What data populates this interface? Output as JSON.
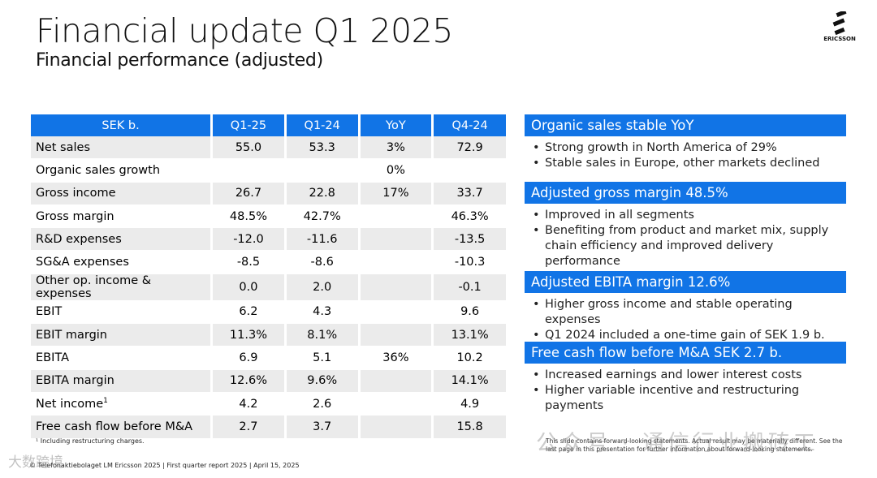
{
  "header": {
    "title": "Financial update Q1 2025",
    "subtitle": "Financial performance (adjusted)",
    "logo_word": "ERICSSON"
  },
  "table": {
    "columns": [
      "SEK b.",
      "Q1-25",
      "Q1-24",
      "YoY",
      "Q4-24"
    ],
    "rows": [
      {
        "label": "Net sales",
        "q125": "55.0",
        "q124": "53.3",
        "yoy": "3%",
        "q424": "72.9"
      },
      {
        "label": "Organic sales growth",
        "q125": "",
        "q124": "",
        "yoy": "0%",
        "q424": ""
      },
      {
        "label": "Gross income",
        "q125": "26.7",
        "q124": "22.8",
        "yoy": "17%",
        "q424": "33.7"
      },
      {
        "label": "Gross margin",
        "q125": "48.5%",
        "q124": "42.7%",
        "yoy": "",
        "q424": "46.3%"
      },
      {
        "label": "R&D expenses",
        "q125": "-12.0",
        "q124": "-11.6",
        "yoy": "",
        "q424": "-13.5"
      },
      {
        "label": "SG&A expenses",
        "q125": "-8.5",
        "q124": "-8.6",
        "yoy": "",
        "q424": "-10.3"
      },
      {
        "label": "Other op. income & expenses",
        "q125": "0.0",
        "q124": "2.0",
        "yoy": "",
        "q424": "-0.1"
      },
      {
        "label": "EBIT",
        "q125": "6.2",
        "q124": "4.3",
        "yoy": "",
        "q424": "9.6"
      },
      {
        "label": "EBIT margin",
        "q125": "11.3%",
        "q124": "8.1%",
        "yoy": "",
        "q424": "13.1%"
      },
      {
        "label": "EBITA",
        "q125": "6.9",
        "q124": "5.1",
        "yoy": "36%",
        "q424": "10.2"
      },
      {
        "label": "EBITA margin",
        "q125": "12.6%",
        "q124": "9.6%",
        "yoy": "",
        "q424": "14.1%"
      },
      {
        "label": "Net income",
        "sup": "1",
        "q125": "4.2",
        "q124": "2.6",
        "yoy": "",
        "q424": "4.9"
      },
      {
        "label": "Free cash flow before M&A",
        "q125": "2.7",
        "q124": "3.7",
        "yoy": "",
        "q424": "15.8"
      }
    ]
  },
  "highlights": [
    {
      "heading": "Organic sales stable YoY",
      "bullets": [
        "Strong growth in North America of 29%",
        "Stable sales in Europe, other markets declined"
      ]
    },
    {
      "heading": "Adjusted gross margin 48.5%",
      "bullets": [
        "Improved in all segments",
        "Benefiting from product and market mix, supply chain efficiency and improved delivery performance"
      ]
    },
    {
      "heading": "Adjusted EBITA margin 12.6%",
      "bullets": [
        "Higher gross income and stable operating expenses",
        "Q1 2024 included a one-time gain of SEK 1.9 b."
      ]
    },
    {
      "heading": "Free cash flow before M&A SEK 2.7 b.",
      "bullets": [
        "Increased earnings and lower interest costs",
        "Higher variable incentive and restructuring payments"
      ]
    }
  ],
  "footnote": "¹ Including restructuring charges.",
  "footer": "© Telefonaktiebolaget LM Ericsson 2025  |  First quarter report 2025  |  April 15, 2025",
  "disclaimer": "This slide contains forward-looking statements. Actual result may be materially different. See the last page in this presentation for further information about forward-looking statements.",
  "watermarks": {
    "left": "大数跨境",
    "right": "公众号 · 通信行业搬砖工"
  },
  "colors": {
    "accent": "#1174e6",
    "row_alt": "#ebebeb"
  }
}
